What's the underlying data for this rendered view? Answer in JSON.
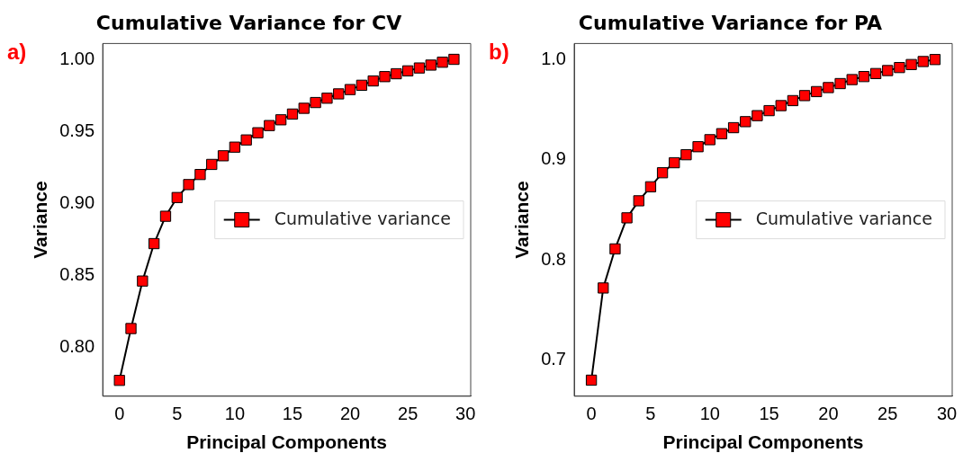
{
  "chart_data": [
    {
      "type": "line",
      "title": "Cumulative Variance for CV",
      "xlabel": "Principal Components",
      "ylabel": "Variance",
      "annotations": [
        "a)"
      ],
      "x": [
        0,
        1,
        2,
        3,
        4,
        5,
        6,
        7,
        8,
        9,
        10,
        11,
        12,
        13,
        14,
        15,
        16,
        17,
        18,
        19,
        20,
        21,
        22,
        23,
        24,
        25,
        26,
        27,
        28,
        29
      ],
      "series": [
        {
          "name": "Cumulative variance",
          "color": "#ff0000",
          "values": [
            0.777,
            0.813,
            0.846,
            0.872,
            0.891,
            0.904,
            0.913,
            0.92,
            0.927,
            0.933,
            0.939,
            0.944,
            0.949,
            0.954,
            0.958,
            0.962,
            0.966,
            0.97,
            0.973,
            0.976,
            0.979,
            0.982,
            0.985,
            0.988,
            0.99,
            0.992,
            0.994,
            0.996,
            0.998,
            1.0
          ]
        }
      ],
      "xlim": [
        -1.45,
        30.45
      ],
      "xticks": [
        0,
        5,
        10,
        15,
        20,
        25,
        30
      ],
      "ylim": [
        0.766,
        1.011
      ],
      "yticks": [
        {
          "value": 0.8,
          "label": "0.80"
        },
        {
          "value": 0.85,
          "label": "0.85"
        },
        {
          "value": 0.9,
          "label": "0.90"
        },
        {
          "value": 0.95,
          "label": "0.95"
        },
        {
          "value": 1.0,
          "label": "1.00"
        }
      ],
      "grid": false,
      "legend": "right",
      "marker": "square",
      "line_style": "solid"
    },
    {
      "type": "line",
      "title": "Cumulative Variance for PA",
      "xlabel": "Principal Components",
      "ylabel": "Variance",
      "annotations": [
        "b)"
      ],
      "x": [
        0,
        1,
        2,
        3,
        4,
        5,
        6,
        7,
        8,
        9,
        10,
        11,
        12,
        13,
        14,
        15,
        16,
        17,
        18,
        19,
        20,
        21,
        22,
        23,
        24,
        25,
        26,
        27,
        28,
        29
      ],
      "series": [
        {
          "name": "Cumulative variance",
          "color": "#ff0000",
          "values": [
            0.68,
            0.772,
            0.811,
            0.842,
            0.859,
            0.873,
            0.887,
            0.897,
            0.905,
            0.913,
            0.92,
            0.926,
            0.932,
            0.938,
            0.944,
            0.949,
            0.954,
            0.959,
            0.964,
            0.968,
            0.972,
            0.976,
            0.98,
            0.983,
            0.986,
            0.989,
            0.992,
            0.995,
            0.998,
            1.0
          ]
        }
      ],
      "xlim": [
        -1.45,
        30.45
      ],
      "xticks": [
        0,
        5,
        10,
        15,
        20,
        25,
        30
      ],
      "ylim": [
        0.664,
        1.016
      ],
      "yticks": [
        {
          "value": 0.7,
          "label": "0.7"
        },
        {
          "value": 0.8,
          "label": "0.8"
        },
        {
          "value": 0.9,
          "label": "0.9"
        },
        {
          "value": 1.0,
          "label": "1.0"
        }
      ],
      "grid": false,
      "legend": "right",
      "marker": "square",
      "line_style": "solid"
    }
  ]
}
